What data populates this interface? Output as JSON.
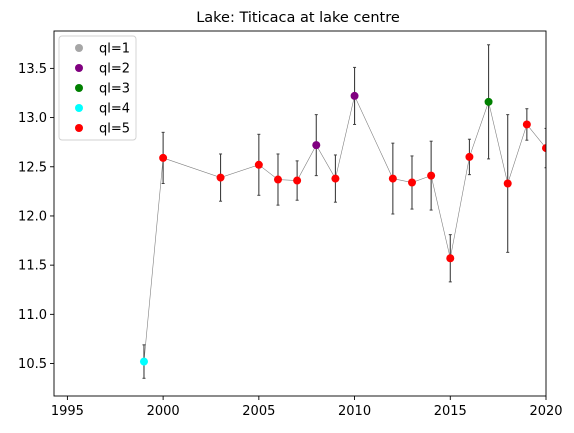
{
  "chart_data": {
    "type": "scatter",
    "title": "Lake: Titicaca at lake centre",
    "xlabel": "",
    "ylabel": "",
    "xlim": [
      1994.3,
      2020
    ],
    "ylim": [
      10.17,
      13.88
    ],
    "xticks": [
      1995,
      2000,
      2005,
      2010,
      2015,
      2020
    ],
    "yticks": [
      10.5,
      11.0,
      11.5,
      12.0,
      12.5,
      13.0,
      13.5
    ],
    "ytick_labels": [
      "10.5",
      "11.0",
      "11.5",
      "12.0",
      "12.5",
      "13.0",
      "13.5"
    ],
    "grid": false,
    "legend_position": "top-left",
    "legend": [
      {
        "label": "ql=1",
        "color": "#a6a6a6"
      },
      {
        "label": "ql=2",
        "color": "#800080"
      },
      {
        "label": "ql=3",
        "color": "#008000"
      },
      {
        "label": "ql=4",
        "color": "#00ffff"
      },
      {
        "label": "ql=5",
        "color": "#ff0000"
      }
    ],
    "line_color": "#808080",
    "errorbar_color": "#404040",
    "points": [
      {
        "x": 1999,
        "y": 10.52,
        "err": 0.17,
        "ql": 4
      },
      {
        "x": 2000,
        "y": 12.59,
        "err": 0.26,
        "ql": 5
      },
      {
        "x": 2003,
        "y": 12.39,
        "err": 0.24,
        "ql": 5
      },
      {
        "x": 2005,
        "y": 12.52,
        "err": 0.31,
        "ql": 5
      },
      {
        "x": 2006,
        "y": 12.37,
        "err": 0.26,
        "ql": 5
      },
      {
        "x": 2007,
        "y": 12.36,
        "err": 0.2,
        "ql": 5
      },
      {
        "x": 2008,
        "y": 12.72,
        "err": 0.31,
        "ql": 2
      },
      {
        "x": 2009,
        "y": 12.38,
        "err": 0.24,
        "ql": 5
      },
      {
        "x": 2010,
        "y": 13.22,
        "err": 0.29,
        "ql": 2
      },
      {
        "x": 2012,
        "y": 12.38,
        "err": 0.36,
        "ql": 5
      },
      {
        "x": 2013,
        "y": 12.34,
        "err": 0.27,
        "ql": 5
      },
      {
        "x": 2014,
        "y": 12.41,
        "err": 0.35,
        "ql": 5
      },
      {
        "x": 2015,
        "y": 11.57,
        "err": 0.24,
        "ql": 5
      },
      {
        "x": 2016,
        "y": 12.6,
        "err": 0.18,
        "ql": 5
      },
      {
        "x": 2017,
        "y": 13.16,
        "err": 0.58,
        "ql": 3
      },
      {
        "x": 2018,
        "y": 12.33,
        "err": 0.7,
        "ql": 5
      },
      {
        "x": 2019,
        "y": 12.93,
        "err": 0.16,
        "ql": 5
      },
      {
        "x": 2020,
        "y": 12.69,
        "err": 0.2,
        "ql": 5
      }
    ]
  }
}
